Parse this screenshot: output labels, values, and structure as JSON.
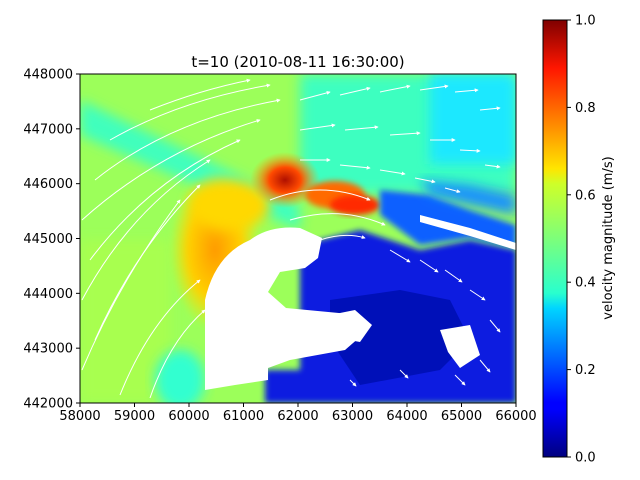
{
  "chart_data": {
    "type": "heatmap",
    "title": "t=10 (2010-08-11 16:30:00)",
    "xlabel": "",
    "ylabel": "",
    "xlim": [
      58000,
      66000
    ],
    "ylim": [
      442000,
      448000
    ],
    "x_ticks": [
      58000,
      59000,
      60000,
      61000,
      62000,
      63000,
      64000,
      65000,
      66000
    ],
    "y_ticks": [
      442000,
      443000,
      444000,
      445000,
      446000,
      447000,
      448000
    ],
    "colormap": "jet",
    "colorbar": {
      "label": "velocity magnitude (m/s)",
      "range": [
        0.0,
        1.0
      ],
      "ticks": [
        0.0,
        0.2,
        0.4,
        0.6,
        0.8,
        1.0
      ],
      "tick_labels": [
        "0.0",
        "0.2",
        "0.4",
        "0.6",
        "0.8",
        "1.0"
      ]
    },
    "overlay": "quiver (white velocity arrows)",
    "grid": false,
    "field_samples": [
      {
        "x": 58500,
        "y": 447500,
        "v": 0.52
      },
      {
        "x": 59500,
        "y": 447500,
        "v": 0.55
      },
      {
        "x": 61000,
        "y": 447500,
        "v": 0.58
      },
      {
        "x": 63000,
        "y": 447500,
        "v": 0.45
      },
      {
        "x": 65000,
        "y": 447500,
        "v": 0.4
      },
      {
        "x": 58500,
        "y": 446200,
        "v": 0.45
      },
      {
        "x": 60000,
        "y": 446000,
        "v": 0.55
      },
      {
        "x": 61800,
        "y": 446100,
        "v": 0.88
      },
      {
        "x": 62200,
        "y": 446300,
        "v": 0.92
      },
      {
        "x": 63000,
        "y": 445700,
        "v": 0.8
      },
      {
        "x": 64500,
        "y": 445800,
        "v": 0.2
      },
      {
        "x": 65500,
        "y": 445500,
        "v": 0.1
      },
      {
        "x": 58500,
        "y": 444500,
        "v": 0.52
      },
      {
        "x": 59800,
        "y": 444500,
        "v": 0.65
      },
      {
        "x": 60500,
        "y": 445300,
        "v": 0.72
      },
      {
        "x": 63500,
        "y": 444800,
        "v": 0.12
      },
      {
        "x": 64500,
        "y": 444200,
        "v": 0.15
      },
      {
        "x": 59000,
        "y": 442500,
        "v": 0.52
      },
      {
        "x": 60000,
        "y": 442600,
        "v": 0.4
      },
      {
        "x": 62500,
        "y": 442300,
        "v": 0.05
      },
      {
        "x": 64500,
        "y": 442800,
        "v": 0.08
      },
      {
        "x": 65800,
        "y": 442400,
        "v": 0.05
      }
    ]
  }
}
